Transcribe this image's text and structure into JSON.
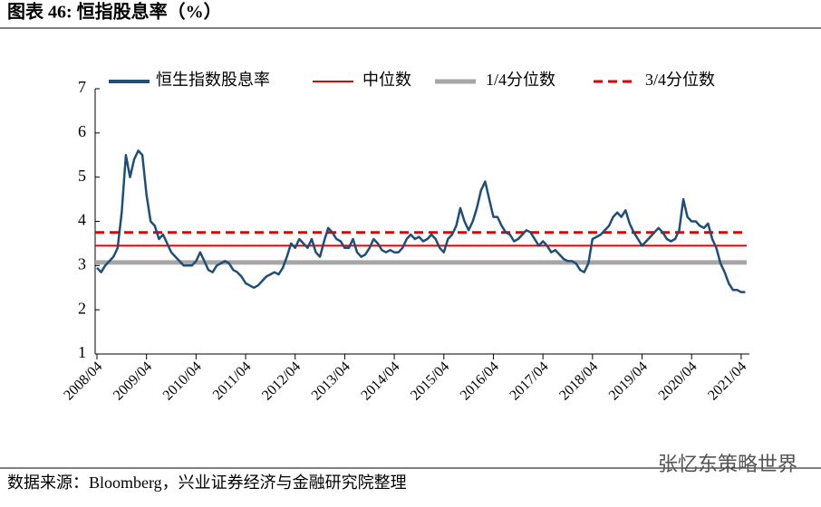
{
  "title": "图表 46:  恒指股息率（%）",
  "source": "数据来源：Bloomberg，兴业证券经济与金融研究院整理",
  "watermark": "张忆东策略世界",
  "chart_data": {
    "type": "line",
    "x": [
      "2008/04",
      "2008/05",
      "2008/06",
      "2008/07",
      "2008/08",
      "2008/09",
      "2008/10",
      "2008/11",
      "2008/12",
      "2009/01",
      "2009/02",
      "2009/03",
      "2009/04",
      "2009/05",
      "2009/06",
      "2009/07",
      "2009/08",
      "2009/09",
      "2009/10",
      "2009/11",
      "2009/12",
      "2010/01",
      "2010/02",
      "2010/03",
      "2010/04",
      "2010/05",
      "2010/06",
      "2010/07",
      "2010/08",
      "2010/09",
      "2010/10",
      "2010/11",
      "2010/12",
      "2011/01",
      "2011/02",
      "2011/03",
      "2011/04",
      "2011/05",
      "2011/06",
      "2011/07",
      "2011/08",
      "2011/09",
      "2011/10",
      "2011/11",
      "2011/12",
      "2012/01",
      "2012/02",
      "2012/03",
      "2012/04",
      "2012/05",
      "2012/06",
      "2012/07",
      "2012/08",
      "2012/09",
      "2012/10",
      "2012/11",
      "2012/12",
      "2013/01",
      "2013/02",
      "2013/03",
      "2013/04",
      "2013/05",
      "2013/06",
      "2013/07",
      "2013/08",
      "2013/09",
      "2013/10",
      "2013/11",
      "2013/12",
      "2014/01",
      "2014/02",
      "2014/03",
      "2014/04",
      "2014/05",
      "2014/06",
      "2014/07",
      "2014/08",
      "2014/09",
      "2014/10",
      "2014/11",
      "2014/12",
      "2015/01",
      "2015/02",
      "2015/03",
      "2015/04",
      "2015/05",
      "2015/06",
      "2015/07",
      "2015/08",
      "2015/09",
      "2015/10",
      "2015/11",
      "2015/12",
      "2016/01",
      "2016/02",
      "2016/03",
      "2016/04",
      "2016/05",
      "2016/06",
      "2016/07",
      "2016/08",
      "2016/09",
      "2016/10",
      "2016/11",
      "2016/12",
      "2017/01",
      "2017/02",
      "2017/03",
      "2017/04",
      "2017/05",
      "2017/06",
      "2017/07",
      "2017/08",
      "2017/09",
      "2017/10",
      "2017/11",
      "2017/12",
      "2018/01",
      "2018/02",
      "2018/03",
      "2018/04",
      "2018/05",
      "2018/06",
      "2018/07",
      "2018/08",
      "2018/09",
      "2018/10",
      "2018/11",
      "2018/12",
      "2019/01",
      "2019/02",
      "2019/03",
      "2019/04",
      "2019/05",
      "2019/06",
      "2019/07",
      "2019/08",
      "2019/09",
      "2019/10",
      "2019/11",
      "2019/12",
      "2020/01",
      "2020/02",
      "2020/03",
      "2020/04",
      "2020/05",
      "2020/06",
      "2020/07",
      "2020/08",
      "2020/09",
      "2020/10",
      "2020/11",
      "2020/12",
      "2021/01",
      "2021/02",
      "2021/03",
      "2021/04",
      "2021/05"
    ],
    "series": [
      {
        "name": "恒生指数股息率",
        "color": "#1f4e79",
        "values": [
          2.95,
          2.85,
          3.0,
          3.1,
          3.2,
          3.4,
          4.2,
          5.5,
          5.0,
          5.4,
          5.6,
          5.5,
          4.6,
          4.0,
          3.9,
          3.6,
          3.7,
          3.5,
          3.3,
          3.2,
          3.1,
          3.0,
          3.0,
          3.0,
          3.1,
          3.3,
          3.1,
          2.9,
          2.85,
          3.0,
          3.05,
          3.1,
          3.05,
          2.9,
          2.85,
          2.75,
          2.6,
          2.55,
          2.5,
          2.55,
          2.65,
          2.75,
          2.8,
          2.85,
          2.8,
          2.95,
          3.2,
          3.5,
          3.4,
          3.6,
          3.5,
          3.4,
          3.6,
          3.3,
          3.2,
          3.55,
          3.85,
          3.75,
          3.6,
          3.55,
          3.4,
          3.4,
          3.6,
          3.3,
          3.2,
          3.25,
          3.4,
          3.6,
          3.5,
          3.35,
          3.3,
          3.35,
          3.3,
          3.3,
          3.4,
          3.6,
          3.7,
          3.6,
          3.65,
          3.55,
          3.6,
          3.7,
          3.6,
          3.4,
          3.3,
          3.6,
          3.7,
          3.9,
          4.3,
          4.0,
          3.8,
          4.0,
          4.3,
          4.7,
          4.9,
          4.5,
          4.1,
          4.1,
          3.9,
          3.75,
          3.7,
          3.55,
          3.6,
          3.7,
          3.8,
          3.75,
          3.6,
          3.45,
          3.55,
          3.45,
          3.3,
          3.35,
          3.25,
          3.15,
          3.1,
          3.1,
          3.05,
          2.9,
          2.85,
          3.05,
          3.6,
          3.65,
          3.7,
          3.8,
          3.9,
          4.1,
          4.2,
          4.1,
          4.25,
          3.95,
          3.75,
          3.6,
          3.45,
          3.55,
          3.65,
          3.75,
          3.85,
          3.75,
          3.6,
          3.55,
          3.6,
          3.8,
          4.5,
          4.1,
          4.0,
          4.0,
          3.9,
          3.85,
          3.95,
          3.6,
          3.4,
          3.05,
          2.85,
          2.6,
          2.45,
          2.45,
          2.4,
          2.4
        ]
      }
    ],
    "reference_lines": [
      {
        "name": "中位数",
        "value": 3.45,
        "color": "#e60000",
        "style": "solid"
      },
      {
        "name": "1/4分位数",
        "value": 3.07,
        "color": "#a6a6a6",
        "style": "thick"
      },
      {
        "name": "3/4分位数",
        "value": 3.75,
        "color": "#e60000",
        "style": "dashed"
      }
    ],
    "xlim": [
      "2008/04",
      "2021/06"
    ],
    "xticks": [
      "2008/04",
      "2009/04",
      "2010/04",
      "2011/04",
      "2012/04",
      "2013/04",
      "2014/04",
      "2015/04",
      "2016/04",
      "2017/04",
      "2018/04",
      "2019/04",
      "2020/04",
      "2021/04"
    ],
    "ylim": [
      1,
      7
    ],
    "yticks": [
      1,
      2,
      3,
      4,
      5,
      6,
      7
    ],
    "legend": "top"
  }
}
